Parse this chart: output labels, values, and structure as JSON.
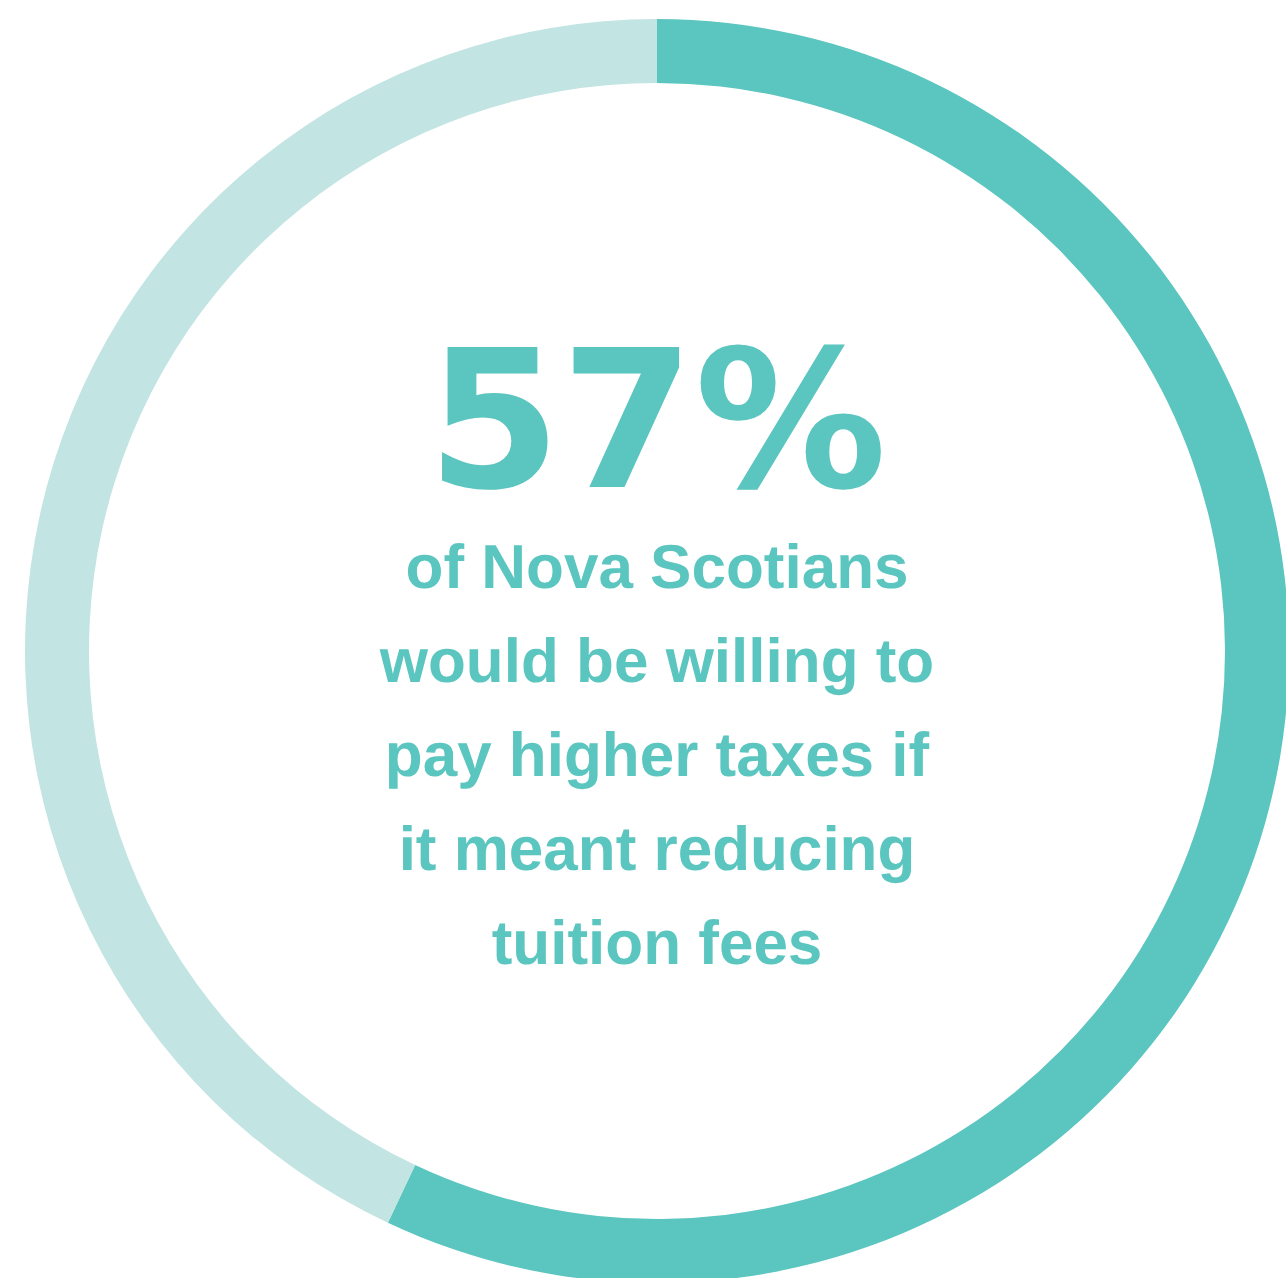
{
  "chart_data": {
    "type": "donut",
    "categories": [
      null,
      null
    ],
    "values": [
      57,
      43
    ],
    "colors": [
      "#5bc5bf",
      "#c2e4e3"
    ],
    "value_labels": [
      "57%",
      null
    ],
    "annotations": [
      "of Nova Scotians would be willing to pay higher taxes if it meant reducing tuition fees"
    ]
  }
}
